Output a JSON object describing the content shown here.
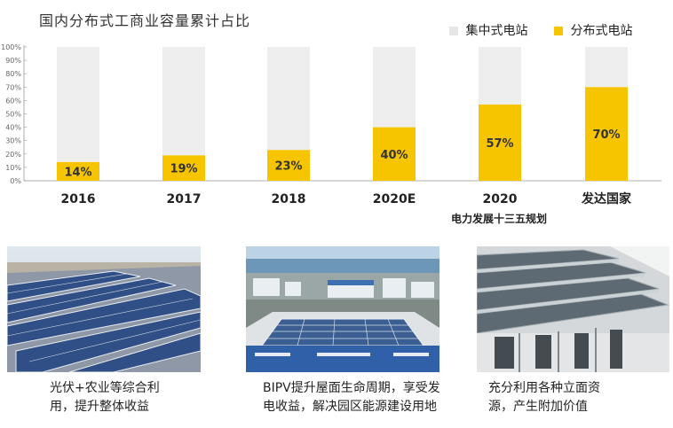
{
  "title": "国内分布式工商业容量累计占比",
  "colors": {
    "centralized": "#eeeeee",
    "distributed": "#f6c500",
    "axis": "#999999"
  },
  "chart_data": {
    "type": "bar",
    "title": "国内分布式工商业容量累计占比",
    "categories": [
      "2016",
      "2017",
      "2018",
      "2020E",
      "2020",
      "发达国家"
    ],
    "series": [
      {
        "name": "集中式电站",
        "values": [
          86,
          81,
          77,
          60,
          43,
          30
        ]
      },
      {
        "name": "分布式电站",
        "values": [
          14,
          19,
          23,
          40,
          57,
          70
        ]
      }
    ],
    "data_labels": [
      "14%",
      "19%",
      "23%",
      "40%",
      "57%",
      "70%"
    ],
    "y_ticks": [
      "0%",
      "10%",
      "20%",
      "30%",
      "40%",
      "50%",
      "60%",
      "70%",
      "80%",
      "90%",
      "100%"
    ],
    "ylim": [
      0,
      100
    ],
    "stacked": true,
    "category_note": "电力发展十三五规划",
    "legend_position": "top-right"
  },
  "panels": [
    {
      "icon": "agrivoltaic-greenhouse-photo",
      "caption_lines": [
        "光伏+农业等综合利",
        "用，提升整体收益"
      ]
    },
    {
      "icon": "bipv-industrial-roof-photo",
      "caption_lines": [
        "BIPV提升屋面生命周期，享受发",
        "电收益，解决园区能源建设用地"
      ]
    },
    {
      "icon": "solar-facade-building-photo",
      "caption_lines": [
        "充分利用各种立面资",
        "源，产生附加价值"
      ]
    }
  ]
}
